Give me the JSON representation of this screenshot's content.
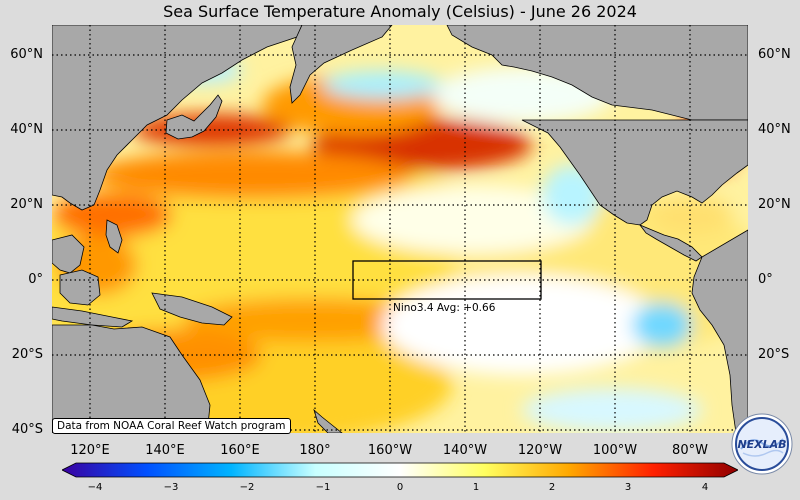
{
  "title": "Sea Surface Temperature Anomaly (Celsius) - June 26 2024",
  "lat_labels": [
    "60°N",
    "40°N",
    "20°N",
    "0°",
    "20°S",
    "40°S"
  ],
  "lon_labels": [
    "120°E",
    "140°E",
    "160°E",
    "180°",
    "160°W",
    "140°W",
    "120°W",
    "100°W",
    "80°W"
  ],
  "nino_box": {
    "label": "Nino3.4 Avg: +0.66"
  },
  "credit": "Data from NOAA Coral Reef Watch program",
  "colorbar": {
    "ticks": [
      "−4",
      "−3",
      "−2",
      "−1",
      "0",
      "1",
      "2",
      "3",
      "4"
    ],
    "colors": [
      "#3a00a0",
      "#0050ff",
      "#00b4ff",
      "#c8ffff",
      "#ffffff",
      "#ffff60",
      "#ffa800",
      "#ff2000",
      "#900000"
    ]
  },
  "logo": {
    "text": "NEXLAB"
  },
  "colors": {
    "land": "#a8a8a8",
    "ocean_warm": "#ffe040",
    "ocean_hot": "#e04000",
    "ocean_neutral": "#ffffff",
    "ocean_cool": "#60d8ff"
  }
}
